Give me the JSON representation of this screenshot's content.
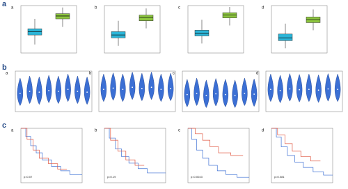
{
  "labels": [
    "a",
    "b",
    "c"
  ],
  "chart_data": [
    {
      "type": "box",
      "label": "a",
      "ylim": [
        0,
        100
      ],
      "boxes": [
        {
          "color": "#2bb5d8",
          "min": 18,
          "q1": 38,
          "median": 45,
          "q3": 51,
          "max": 72
        },
        {
          "color": "#8dc63f",
          "min": 55,
          "q1": 72,
          "median": 78,
          "q3": 83,
          "max": 96
        }
      ]
    },
    {
      "type": "box",
      "label": "b",
      "ylim": [
        0,
        100
      ],
      "boxes": [
        {
          "color": "#2bb5d8",
          "min": 15,
          "q1": 32,
          "median": 38,
          "q3": 45,
          "max": 68
        },
        {
          "color": "#8dc63f",
          "min": 52,
          "q1": 68,
          "median": 75,
          "q3": 80,
          "max": 94
        }
      ]
    },
    {
      "type": "box",
      "label": "c",
      "ylim": [
        0,
        100
      ],
      "boxes": [
        {
          "color": "#2bb5d8",
          "min": 20,
          "q1": 36,
          "median": 42,
          "q3": 48,
          "max": 70
        },
        {
          "color": "#8dc63f",
          "min": 58,
          "q1": 74,
          "median": 80,
          "q3": 85,
          "max": 97
        }
      ]
    },
    {
      "type": "box",
      "label": "d",
      "ylim": [
        0,
        100
      ],
      "boxes": [
        {
          "color": "#2bb5d8",
          "min": 10,
          "q1": 26,
          "median": 32,
          "q3": 40,
          "max": 62
        },
        {
          "color": "#8dc63f",
          "min": 48,
          "q1": 64,
          "median": 70,
          "q3": 76,
          "max": 92
        }
      ]
    },
    {
      "type": "violin",
      "label": "a",
      "ylim": [
        0,
        1
      ],
      "color": "#3b6fd4",
      "values": [
        0.45,
        0.5,
        0.48,
        0.52,
        0.5,
        0.55,
        0.5,
        0.48
      ]
    },
    {
      "type": "violin",
      "label": "b",
      "ylim": [
        0,
        1
      ],
      "color": "#3b6fd4",
      "values": [
        0.55,
        0.58,
        0.55,
        0.6,
        0.57,
        0.6,
        0.55,
        0.57
      ]
    },
    {
      "type": "violin",
      "label": "c",
      "ylim": [
        0,
        1
      ],
      "color": "#3b6fd4",
      "values": [
        0.42,
        0.45,
        0.4,
        0.44,
        0.42,
        0.4,
        0.45,
        0.43
      ]
    },
    {
      "type": "violin",
      "label": "d",
      "ylim": [
        0,
        1
      ],
      "color": "#3b6fd4",
      "values": [
        0.55,
        0.52,
        0.56,
        0.54,
        0.55,
        0.53,
        0.56,
        0.55
      ]
    },
    {
      "type": "survival",
      "label": "a",
      "annotation": "p=0.07",
      "xlim": [
        0,
        100
      ],
      "ylim": [
        0,
        1
      ],
      "series": [
        {
          "color": "#3b6fd4",
          "x": [
            0,
            8,
            16,
            25,
            35,
            50,
            65,
            80,
            100
          ],
          "values": [
            1,
            0.85,
            0.68,
            0.55,
            0.42,
            0.3,
            0.22,
            0.15,
            0.15
          ]
        },
        {
          "color": "#e0553f",
          "x": [
            0,
            10,
            20,
            30,
            45,
            60,
            75
          ],
          "values": [
            1,
            0.8,
            0.6,
            0.45,
            0.35,
            0.25,
            0.25
          ]
        }
      ]
    },
    {
      "type": "survival",
      "label": "b",
      "annotation": "p=0.19",
      "xlim": [
        0,
        100
      ],
      "ylim": [
        0,
        1
      ],
      "series": [
        {
          "color": "#3b6fd4",
          "x": [
            0,
            8,
            18,
            28,
            40,
            55,
            70,
            100
          ],
          "values": [
            1,
            0.82,
            0.62,
            0.48,
            0.36,
            0.26,
            0.18,
            0.18
          ]
        },
        {
          "color": "#e0553f",
          "x": [
            0,
            10,
            22,
            35,
            50,
            65
          ],
          "values": [
            1,
            0.78,
            0.58,
            0.42,
            0.32,
            0.32
          ]
        }
      ]
    },
    {
      "type": "survival",
      "label": "c",
      "annotation": "p=0.0043",
      "xlim": [
        0,
        100
      ],
      "ylim": [
        0,
        1
      ],
      "series": [
        {
          "color": "#3b6fd4",
          "x": [
            0,
            6,
            14,
            24,
            34,
            48,
            62,
            80,
            100
          ],
          "values": [
            1,
            0.8,
            0.6,
            0.45,
            0.32,
            0.22,
            0.15,
            0.1,
            0.1
          ]
        },
        {
          "color": "#e0553f",
          "x": [
            0,
            12,
            24,
            36,
            50,
            70,
            90
          ],
          "values": [
            1,
            0.9,
            0.78,
            0.66,
            0.55,
            0.5,
            0.5
          ]
        }
      ]
    },
    {
      "type": "survival",
      "label": "d",
      "annotation": "p=0.081",
      "xlim": [
        0,
        100
      ],
      "ylim": [
        0,
        1
      ],
      "series": [
        {
          "color": "#3b6fd4",
          "x": [
            0,
            8,
            16,
            26,
            38,
            52,
            68,
            85,
            100
          ],
          "values": [
            1,
            0.84,
            0.66,
            0.5,
            0.38,
            0.28,
            0.2,
            0.14,
            0.14
          ]
        },
        {
          "color": "#e0553f",
          "x": [
            0,
            10,
            22,
            34,
            48,
            64,
            80
          ],
          "values": [
            1,
            0.88,
            0.72,
            0.58,
            0.48,
            0.4,
            0.4
          ]
        }
      ]
    }
  ]
}
